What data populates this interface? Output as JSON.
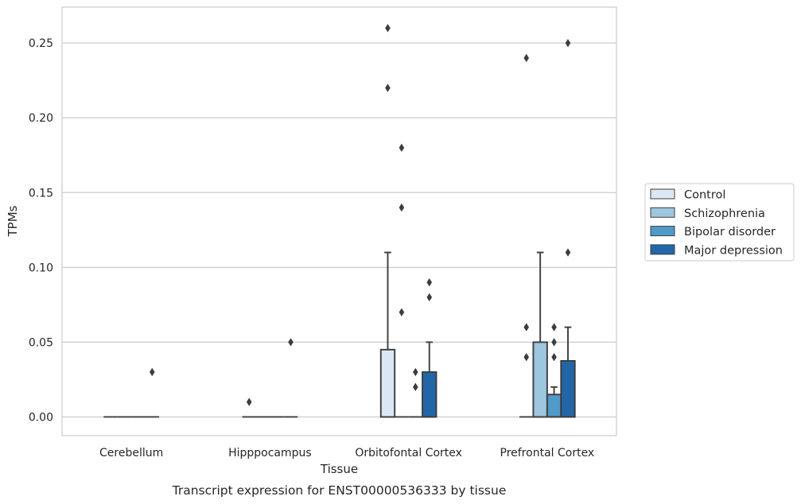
{
  "chart_data": {
    "type": "box",
    "caption": "Transcript expression for ENST00000536333 by tissue",
    "xlabel": "Tissue",
    "ylabel": "TPMs",
    "ylim": [
      -0.0125,
      0.274
    ],
    "yticks": [
      0.0,
      0.05,
      0.1,
      0.15,
      0.2,
      0.25
    ],
    "ytick_labels": [
      "0.00",
      "0.05",
      "0.10",
      "0.15",
      "0.20",
      "0.25"
    ],
    "grid": true,
    "legend_position": "right",
    "categories": [
      "Cerebellum",
      "Hipppocampus",
      "Orbitofontal Cortex",
      "Prefrontal Cortex"
    ],
    "series": [
      {
        "name": "Control",
        "color": "#dbe8f4",
        "boxes": [
          {
            "q1": 0,
            "median": 0,
            "q3": 0,
            "whisker_low": 0,
            "whisker_high": 0,
            "outliers": []
          },
          {
            "q1": 0,
            "median": 0,
            "q3": 0,
            "whisker_low": 0,
            "whisker_high": 0,
            "outliers": [
              0.01
            ]
          },
          {
            "q1": 0,
            "median": 0,
            "q3": 0.045,
            "whisker_low": 0,
            "whisker_high": 0.11,
            "outliers": [
              0.22,
              0.26
            ]
          },
          {
            "q1": 0,
            "median": 0,
            "q3": 0,
            "whisker_low": 0,
            "whisker_high": 0,
            "outliers": [
              0.04,
              0.06,
              0.24
            ]
          }
        ]
      },
      {
        "name": "Schizophrenia",
        "color": "#9dc6df",
        "boxes": [
          {
            "q1": 0,
            "median": 0,
            "q3": 0,
            "whisker_low": 0,
            "whisker_high": 0,
            "outliers": []
          },
          {
            "q1": 0,
            "median": 0,
            "q3": 0,
            "whisker_low": 0,
            "whisker_high": 0,
            "outliers": []
          },
          {
            "q1": 0,
            "median": 0,
            "q3": 0,
            "whisker_low": 0,
            "whisker_high": 0,
            "outliers": [
              0.07,
              0.14,
              0.18
            ]
          },
          {
            "q1": 0,
            "median": 0,
            "q3": 0.05,
            "whisker_low": 0,
            "whisker_high": 0.11,
            "outliers": []
          }
        ]
      },
      {
        "name": "Bipolar disorder",
        "color": "#5199c8",
        "boxes": [
          {
            "q1": 0,
            "median": 0,
            "q3": 0,
            "whisker_low": 0,
            "whisker_high": 0,
            "outliers": []
          },
          {
            "q1": 0,
            "median": 0,
            "q3": 0,
            "whisker_low": 0,
            "whisker_high": 0,
            "outliers": []
          },
          {
            "q1": 0,
            "median": 0,
            "q3": 0,
            "whisker_low": 0,
            "whisker_high": 0,
            "outliers": [
              0.02,
              0.03
            ]
          },
          {
            "q1": 0,
            "median": 0,
            "q3": 0.015,
            "whisker_low": 0,
            "whisker_high": 0.02,
            "outliers": [
              0.04,
              0.05,
              0.06
            ]
          }
        ]
      },
      {
        "name": "Major depression",
        "color": "#2266a8",
        "boxes": [
          {
            "q1": 0,
            "median": 0,
            "q3": 0,
            "whisker_low": 0,
            "whisker_high": 0,
            "outliers": [
              0.03
            ]
          },
          {
            "q1": 0,
            "median": 0,
            "q3": 0,
            "whisker_low": 0,
            "whisker_high": 0,
            "outliers": [
              0.05
            ]
          },
          {
            "q1": 0,
            "median": 0,
            "q3": 0.03,
            "whisker_low": 0,
            "whisker_high": 0.05,
            "outliers": [
              0.08,
              0.09
            ]
          },
          {
            "q1": 0,
            "median": 0,
            "q3": 0.0375,
            "whisker_low": 0,
            "whisker_high": 0.06,
            "outliers": [
              0.11,
              0.25
            ]
          }
        ]
      }
    ]
  }
}
